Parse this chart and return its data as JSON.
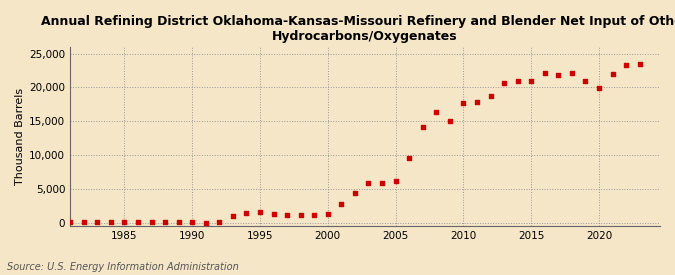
{
  "title": "Annual Refining District Oklahoma-Kansas-Missouri Refinery and Blender Net Input of Other\nHydrocarbons/Oxygenates",
  "ylabel": "Thousand Barrels",
  "source": "Source: U.S. Energy Information Administration",
  "background_color": "#f5e6c8",
  "plot_bg_color": "#f5e6c8",
  "marker_color": "#cc0000",
  "xlim": [
    1981,
    2024.5
  ],
  "ylim": [
    -500,
    26000
  ],
  "yticks": [
    0,
    5000,
    10000,
    15000,
    20000,
    25000
  ],
  "xticks": [
    1985,
    1990,
    1995,
    2000,
    2005,
    2010,
    2015,
    2020
  ],
  "years": [
    1981,
    1982,
    1983,
    1984,
    1985,
    1986,
    1987,
    1988,
    1989,
    1990,
    1991,
    1992,
    1993,
    1994,
    1995,
    1996,
    1997,
    1998,
    1999,
    2000,
    2001,
    2002,
    2003,
    2004,
    2005,
    2006,
    2007,
    2008,
    2009,
    2010,
    2011,
    2012,
    2013,
    2014,
    2015,
    2016,
    2017,
    2018,
    2019,
    2020,
    2021,
    2022,
    2023
  ],
  "values": [
    20,
    30,
    25,
    40,
    50,
    60,
    70,
    80,
    90,
    50,
    -100,
    100,
    900,
    1400,
    1500,
    1200,
    1100,
    1100,
    1100,
    1200,
    2800,
    4300,
    5800,
    5900,
    6100,
    9600,
    14200,
    16400,
    15000,
    17700,
    17800,
    18700,
    20700,
    21000,
    21000,
    22100,
    21900,
    22200,
    21000,
    19900,
    22000,
    23300,
    23500
  ],
  "title_fontsize": 9,
  "tick_fontsize": 7.5,
  "ylabel_fontsize": 8,
  "source_fontsize": 7
}
